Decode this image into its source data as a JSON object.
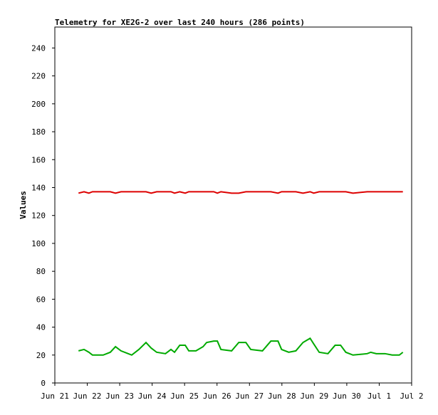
{
  "chart_data": {
    "type": "line",
    "title": "Telemetry for XE2G-2 over last 240 hours (286 points)",
    "y_label": "Values",
    "x": [
      0.73,
      0.9,
      1.05,
      1.16,
      1.49,
      1.71,
      1.87,
      2.04,
      2.26,
      2.37,
      2.59,
      2.81,
      2.97,
      3.14,
      3.41,
      3.58,
      3.69,
      3.85,
      4.02,
      4.13,
      4.35,
      4.57,
      4.68,
      4.9,
      5.01,
      5.12,
      5.45,
      5.67,
      5.89,
      6.04,
      6.4,
      6.66,
      6.88,
      6.99,
      7.21,
      7.43,
      7.65,
      7.87,
      7.98,
      8.15,
      8.42,
      8.64,
      8.81,
      8.97,
      9.19,
      9.63,
      9.74,
      9.91,
      10.18,
      10.4,
      10.62,
      10.73
    ],
    "series": [
      {
        "color": "#dd0000",
        "values": [
          136,
          137,
          136,
          137,
          137,
          137,
          136,
          137,
          137,
          137,
          137,
          137,
          136,
          137,
          137,
          137,
          136,
          137,
          136,
          137,
          137,
          137,
          137,
          137,
          136,
          137,
          136,
          136,
          137,
          137,
          137,
          137,
          136,
          137,
          137,
          137,
          136,
          137,
          136,
          137,
          137,
          137,
          137,
          137,
          136,
          137,
          137,
          137,
          137,
          137,
          137,
          137
        ]
      },
      {
        "color": "#00aa00",
        "values": [
          23,
          24,
          22,
          20,
          20,
          22,
          26,
          23,
          21,
          20,
          24,
          29,
          25,
          22,
          21,
          24,
          22,
          27,
          27,
          23,
          23,
          26,
          29,
          30,
          30,
          24,
          23,
          29,
          29,
          24,
          23,
          30,
          30,
          24,
          22,
          23,
          29,
          32,
          28,
          22,
          21,
          27,
          27,
          22,
          20,
          21,
          22,
          21,
          21,
          20,
          20,
          22
        ]
      }
    ],
    "xlim": [
      0,
      11
    ],
    "xticks": [
      {
        "value": 0,
        "label": "Jun 21"
      },
      {
        "value": 1,
        "label": "Jun 22"
      },
      {
        "value": 2,
        "label": "Jun 23"
      },
      {
        "value": 3,
        "label": "Jun 24"
      },
      {
        "value": 4,
        "label": "Jun 25"
      },
      {
        "value": 5,
        "label": "Jun 26"
      },
      {
        "value": 6,
        "label": "Jun 27"
      },
      {
        "value": 7,
        "label": "Jun 28"
      },
      {
        "value": 8,
        "label": "Jun 29"
      },
      {
        "value": 9,
        "label": "Jun 30"
      },
      {
        "value": 10,
        "label": "Jul 1"
      },
      {
        "value": 11,
        "label": "Jul 2"
      }
    ],
    "ylim": [
      0,
      255
    ],
    "yticks": [
      0,
      20,
      40,
      60,
      80,
      100,
      120,
      140,
      160,
      180,
      200,
      220,
      240
    ]
  }
}
